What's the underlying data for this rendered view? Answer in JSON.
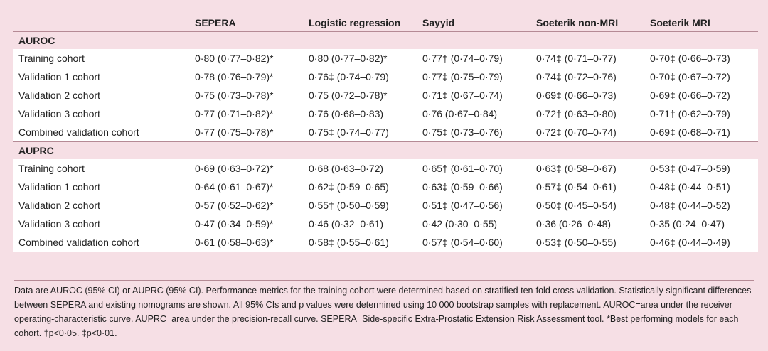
{
  "table": {
    "columns": [
      "",
      "SEPERA",
      "Logistic regression",
      "Sayyid",
      "Soeterik non-MRI",
      "Soeterik MRI"
    ],
    "sections": [
      {
        "label": "AUROC",
        "rows": [
          [
            "Training cohort",
            "0·80 (0·77–0·82)*",
            "0·80 (0·77–0·82)*",
            "0·77† (0·74–0·79)",
            "0·74‡ (0·71–0·77)",
            "0·70‡ (0·66–0·73)"
          ],
          [
            "Validation 1 cohort",
            "0·78 (0·76–0·79)*",
            "0·76‡ (0·74–0·79)",
            "0·77‡ (0·75–0·79)",
            "0·74‡ (0·72–0·76)",
            "0·70‡ (0·67–0·72)"
          ],
          [
            "Validation 2 cohort",
            "0·75 (0·73–0·78)*",
            "0·75 (0·72–0·78)*",
            "0·71‡ (0·67–0·74)",
            "0·69‡ (0·66–0·73)",
            "0·69‡ (0·66–0·72)"
          ],
          [
            "Validation 3 cohort",
            "0·77 (0·71–0·82)*",
            "0·76 (0·68–0·83)",
            "0·76 (0·67–0·84)",
            "0·72† (0·63–0·80)",
            "0·71† (0·62–0·79)"
          ],
          [
            "Combined validation cohort",
            "0·77 (0·75–0·78)*",
            "0·75‡ (0·74–0·77)",
            "0·75‡ (0·73–0·76)",
            "0·72‡ (0·70–0·74)",
            "0·69‡ (0·68–0·71)"
          ]
        ]
      },
      {
        "label": "AUPRC",
        "rows": [
          [
            "Training cohort",
            "0·69 (0·63–0·72)*",
            "0·68 (0·63–0·72)",
            "0·65† (0·61–0·70)",
            "0·63‡ (0·58–0·67)",
            "0·53‡ (0·47–0·59)"
          ],
          [
            "Validation 1 cohort",
            "0·64 (0·61–0·67)*",
            "0·62‡ (0·59–0·65)",
            "0·63‡ (0·59–0·66)",
            "0·57‡ (0·54–0·61)",
            "0·48‡ (0·44–0·51)"
          ],
          [
            "Validation 2 cohort",
            "0·57 (0·52–0·62)*",
            "0·55† (0·50–0·59)",
            "0·51‡ (0·47–0·56)",
            "0·50‡ (0·45–0·54)",
            "0·48‡ (0·44–0·52)"
          ],
          [
            "Validation 3 cohort",
            "0·47 (0·34–0·59)*",
            "0·46 (0·32–0·61)",
            "0·42 (0·30–0·55)",
            "0·36 (0·26–0·48)",
            "0·35 (0·24–0·47)"
          ],
          [
            "Combined validation cohort",
            "0·61 (0·58–0·63)*",
            "0·58‡ (0·55–0·61)",
            "0·57‡ (0·54–0·60)",
            "0·53‡ (0·50–0·55)",
            "0·46‡ (0·44–0·49)"
          ]
        ]
      }
    ]
  },
  "footnote": "Data are AUROC (95% CI) or AUPRC (95% CI). Performance metrics for the training cohort were determined based on stratified ten-fold cross validation. Statistically significant differences between SEPERA and existing nomograms are shown. All 95% CIs and p values were determined using 10 000 bootstrap samples with replacement. AUROC=area under the receiver operating-characteristic curve. AUPRC=area under the precision-recall curve. SEPERA=Side-specific Extra-Prostatic Extension Risk Assessment tool. *Best performing models for each cohort. †p<0·05. ‡p<0·01."
}
